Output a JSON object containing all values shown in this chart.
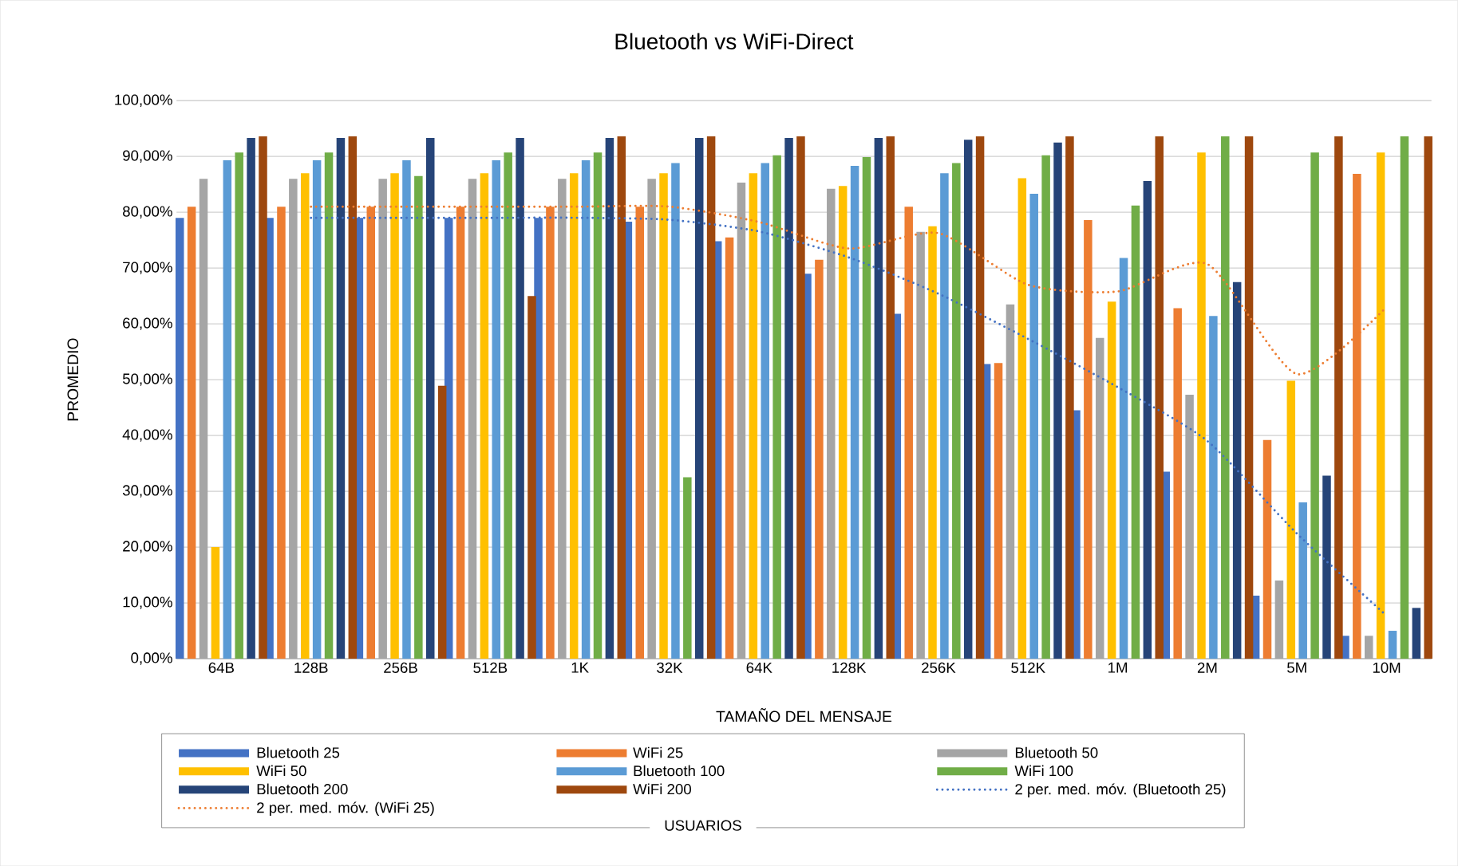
{
  "chart_data": {
    "type": "bar",
    "title": "Bluetooth vs WiFi-Direct",
    "xlabel": "TAMAÑO DEL MENSAJE",
    "ylabel": "PROMEDIO",
    "legend_title": "USUARIOS",
    "categories": [
      "64B",
      "128B",
      "256B",
      "512B",
      "1K",
      "32K",
      "64K",
      "128K",
      "256K",
      "512K",
      "1M",
      "2M",
      "5M",
      "10M"
    ],
    "series": [
      {
        "name": "Bluetooth 25",
        "color": "#4472c4",
        "values": [
          79,
          79,
          79,
          79,
          79,
          78.3,
          74.8,
          69,
          61.8,
          52.8,
          44.5,
          33.5,
          11.3,
          4.1
        ]
      },
      {
        "name": "WiFi 25",
        "color": "#ed7d31",
        "values": [
          81,
          81,
          81,
          81,
          81,
          81,
          75.5,
          71.5,
          81,
          53,
          78.6,
          62.8,
          39.2,
          86.9
        ]
      },
      {
        "name": "Bluetooth 50",
        "color": "#a5a5a5",
        "values": [
          86,
          86,
          86,
          86,
          86,
          86,
          85.3,
          84.2,
          76.5,
          63.5,
          57.5,
          47.3,
          14,
          4.1
        ]
      },
      {
        "name": "WiFi 50",
        "color": "#ffc000",
        "values": [
          20,
          87,
          87,
          87,
          87,
          87,
          87,
          84.7,
          77.5,
          86.1,
          64,
          90.7,
          49.8,
          90.7
        ]
      },
      {
        "name": "Bluetooth 100",
        "color": "#5b9bd5",
        "values": [
          89.3,
          89.3,
          89.3,
          89.3,
          89.3,
          88.8,
          88.8,
          88.3,
          87,
          83.3,
          71.8,
          61.4,
          28,
          5
        ]
      },
      {
        "name": "WiFi 100",
        "color": "#70ad47",
        "values": [
          90.7,
          90.7,
          86.5,
          90.7,
          90.7,
          32.5,
          90.2,
          89.9,
          88.8,
          90.2,
          81.2,
          93.6,
          90.7,
          93.6
        ]
      },
      {
        "name": "Bluetooth 200",
        "color": "#264478",
        "values": [
          93.3,
          93.3,
          93.3,
          93.3,
          93.3,
          93.3,
          93.3,
          93.3,
          93,
          92.5,
          85.6,
          67.5,
          32.8,
          9.1
        ]
      },
      {
        "name": "WiFi 200",
        "color": "#9e480e",
        "values": [
          93.6,
          93.6,
          48.9,
          65,
          93.6,
          93.6,
          93.6,
          93.6,
          93.6,
          93.6,
          93.6,
          93.6,
          93.6,
          93.6
        ]
      },
      {
        "name": "2 per. med. móv. (Bluetooth 25)",
        "type": "line",
        "line_style": "dotted",
        "color": "#4472c4",
        "values": [
          null,
          79,
          79,
          79,
          79,
          78.65,
          76.55,
          71.9,
          65.4,
          57.3,
          48.65,
          39,
          22.4,
          7.7
        ]
      },
      {
        "name": "2 per. med. móv. (WiFi 25)",
        "type": "line",
        "line_style": "dotted",
        "color": "#ed7d31",
        "values": [
          null,
          81,
          81,
          81,
          81,
          81,
          78.25,
          73.5,
          76.25,
          67,
          65.8,
          70.7,
          51,
          63.05
        ]
      }
    ],
    "ylim": [
      0,
      100
    ],
    "yticks": [
      {
        "value": 0,
        "label": "0,00%"
      },
      {
        "value": 10,
        "label": "10,00%"
      },
      {
        "value": 20,
        "label": "20,00%"
      },
      {
        "value": 30,
        "label": "30,00%"
      },
      {
        "value": 40,
        "label": "40,00%"
      },
      {
        "value": 50,
        "label": "50,00%"
      },
      {
        "value": 60,
        "label": "60,00%"
      },
      {
        "value": 70,
        "label": "70,00%"
      },
      {
        "value": 80,
        "label": "80,00%"
      },
      {
        "value": 90,
        "label": "90,00%"
      },
      {
        "value": 100,
        "label": "100,00%"
      }
    ],
    "grid": "y",
    "legend": "bottom"
  }
}
